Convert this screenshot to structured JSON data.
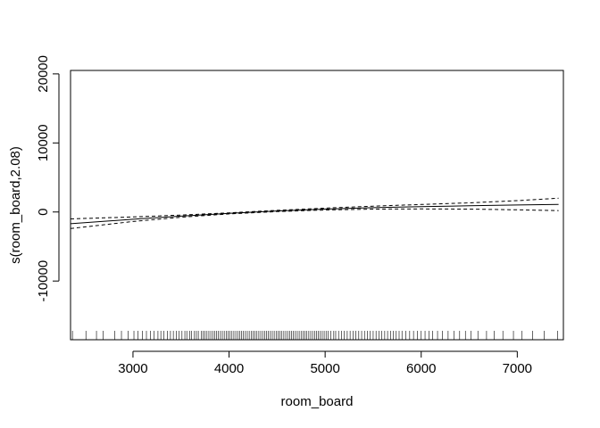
{
  "chart_data": {
    "type": "line",
    "title": "",
    "xlabel": "room_board",
    "ylabel": "s(room_board,2.08)",
    "xlim": [
      2350,
      7480
    ],
    "ylim": [
      -18500,
      20500
    ],
    "x_ticks": [
      3000,
      4000,
      5000,
      6000,
      7000
    ],
    "y_ticks": [
      -10000,
      0,
      10000,
      20000
    ],
    "x_tick_labels": [
      "3000",
      "4000",
      "5000",
      "6000",
      "7000"
    ],
    "y_tick_labels": [
      "-10000",
      "0",
      "10000",
      "20000"
    ],
    "grid": false,
    "series": [
      {
        "style": "solid",
        "x": [
          2350,
          3000,
          3500,
          4000,
          4500,
          5000,
          5500,
          6000,
          6500,
          7000,
          7430
        ],
        "y": [
          -1700,
          -1050,
          -600,
          -200,
          150,
          420,
          620,
          780,
          900,
          1010,
          1100
        ]
      },
      {
        "style": "dashed",
        "x": [
          2350,
          3000,
          3500,
          4000,
          4500,
          5000,
          5500,
          6000,
          6500,
          7000,
          7430
        ],
        "y": [
          -1000,
          -720,
          -450,
          -120,
          240,
          560,
          840,
          1090,
          1320,
          1650,
          2000
        ]
      },
      {
        "style": "dashed",
        "x": [
          2350,
          3000,
          3500,
          4000,
          4500,
          5000,
          5500,
          6000,
          6500,
          7000,
          7430
        ],
        "y": [
          -2400,
          -1380,
          -750,
          -280,
          60,
          290,
          420,
          450,
          420,
          320,
          200
        ]
      }
    ],
    "rug": [
      2370,
      2510,
      2620,
      2690,
      2810,
      2880,
      2950,
      3010,
      3050,
      3100,
      3140,
      3180,
      3220,
      3260,
      3290,
      3320,
      3360,
      3390,
      3420,
      3450,
      3480,
      3510,
      3540,
      3560,
      3590,
      3610,
      3640,
      3660,
      3680,
      3710,
      3730,
      3750,
      3770,
      3790,
      3810,
      3830,
      3850,
      3870,
      3890,
      3910,
      3930,
      3950,
      3970,
      3990,
      4010,
      4030,
      4050,
      4070,
      4090,
      4110,
      4130,
      4150,
      4170,
      4190,
      4210,
      4230,
      4250,
      4270,
      4290,
      4310,
      4330,
      4350,
      4370,
      4390,
      4410,
      4430,
      4450,
      4470,
      4490,
      4510,
      4530,
      4550,
      4570,
      4590,
      4610,
      4630,
      4650,
      4670,
      4690,
      4710,
      4730,
      4750,
      4770,
      4790,
      4810,
      4830,
      4850,
      4870,
      4890,
      4910,
      4930,
      4950,
      4970,
      4990,
      5010,
      5030,
      5060,
      5090,
      5110,
      5140,
      5170,
      5200,
      5230,
      5260,
      5290,
      5320,
      5350,
      5380,
      5410,
      5440,
      5470,
      5500,
      5530,
      5560,
      5590,
      5620,
      5650,
      5680,
      5710,
      5740,
      5770,
      5800,
      5840,
      5880,
      5920,
      5960,
      6000,
      6040,
      6080,
      6120,
      6170,
      6220,
      6280,
      6340,
      6400,
      6460,
      6520,
      6590,
      6680,
      6760,
      6850,
      6960,
      7050,
      7160,
      7280,
      7420
    ]
  }
}
